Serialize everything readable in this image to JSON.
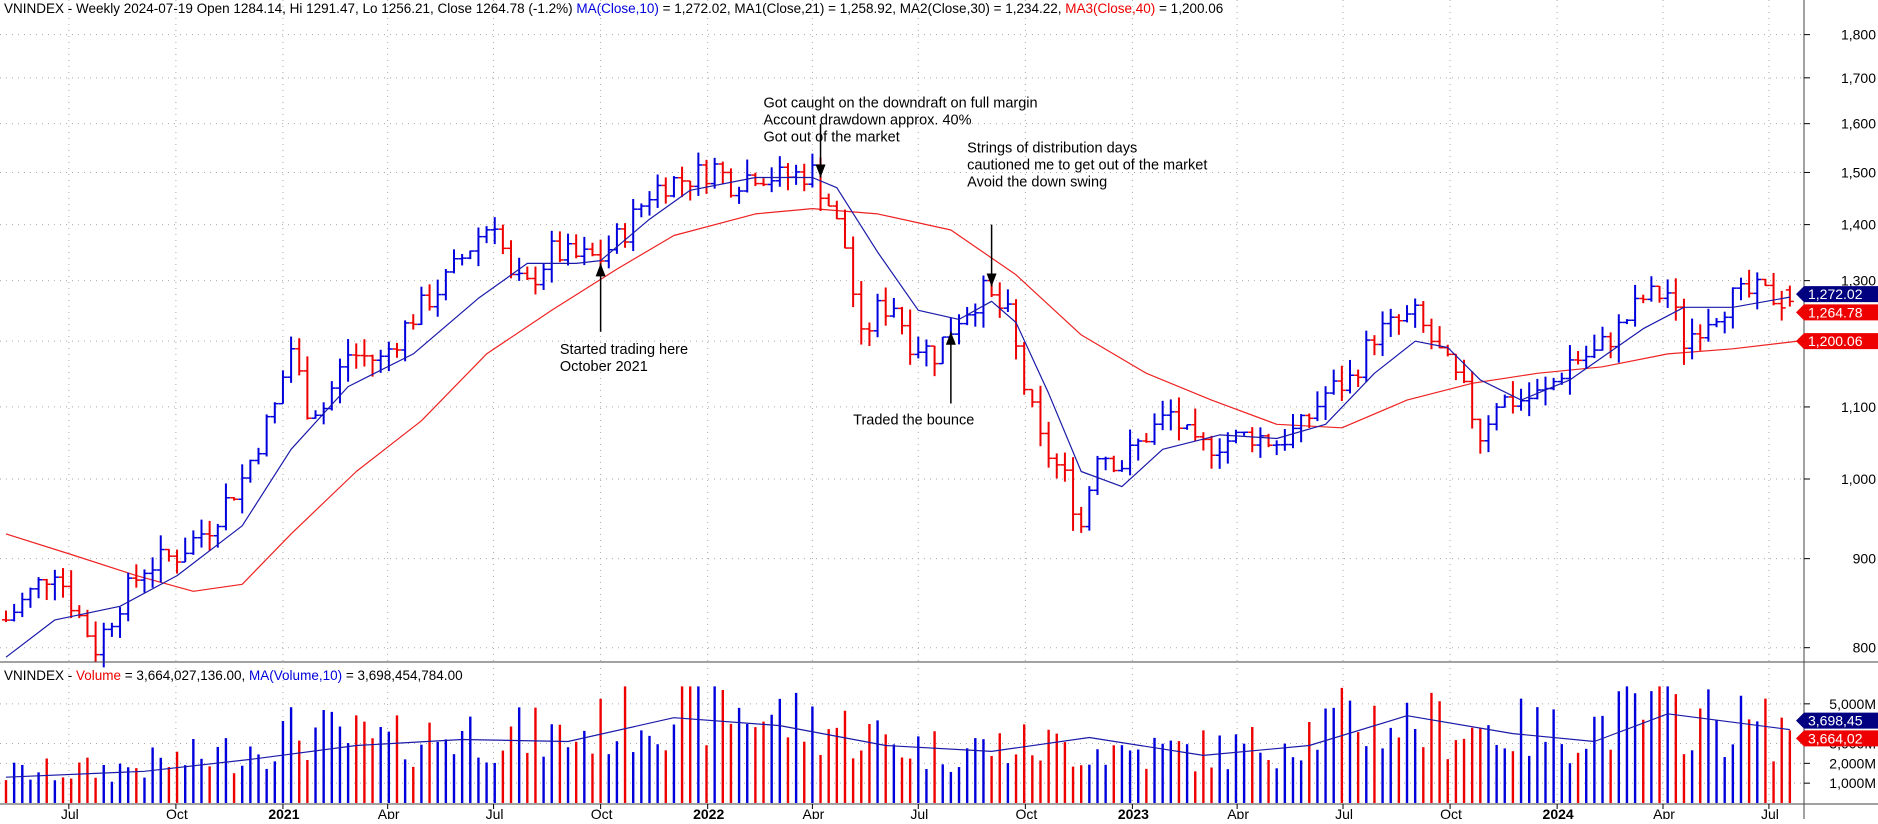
{
  "colors": {
    "up": "#0000dd",
    "down": "#ee0000",
    "ma_short": "#1a1aaa",
    "ma_long": "#ee2222",
    "grid": "#aaaaaa",
    "text": "#000000",
    "tag_blue": "#000080",
    "tag_red": "#ee0000"
  },
  "price_header": [
    {
      "text": "VNINDEX - Weekly 2024-07-19 Open 1284.14, Hi 1291.47, Lo 1256.21, Close 1264.78 (-1.2%) ",
      "color": "#000000"
    },
    {
      "text": "MA(Close,10)",
      "color": "#0000dd"
    },
    {
      "text": " = 1,272.02, MA1(Close,21) = 1,258.92, MA2(Close,30) = 1,234.22, ",
      "color": "#000000"
    },
    {
      "text": "MA3(Close,40)",
      "color": "#ee0000"
    },
    {
      "text": " = 1,200.06",
      "color": "#000000"
    }
  ],
  "volume_header": [
    {
      "text": "VNINDEX - ",
      "color": "#000000"
    },
    {
      "text": "Volume",
      "color": "#ee0000"
    },
    {
      "text": " = 3,664,027,136.00, ",
      "color": "#000000"
    },
    {
      "text": "MA(Volume,10)",
      "color": "#0000dd"
    },
    {
      "text": " = 3,698,454,784.00",
      "color": "#000000"
    }
  ],
  "annotations": [
    {
      "lines": [
        "Got caught on the downdraft on full margin",
        "Account drawdown approx. 40%",
        "Got out of the market"
      ],
      "arrow_date": "2022-04-08",
      "arrow_dir": "down",
      "arrow_from": 1600,
      "arrow_to": 1490,
      "text_date": "2022-02-18",
      "text_price": 1635
    },
    {
      "lines": [
        "Strings of distribution days",
        "cautioned me to get out of the market",
        "Avoid the down swing"
      ],
      "arrow_date": "2022-09-02",
      "arrow_dir": "down",
      "arrow_from": 1400,
      "arrow_to": 1290,
      "text_date": "2022-08-12",
      "text_price": 1540
    },
    {
      "lines": [
        "Started trading here",
        "October 2021"
      ],
      "arrow_date": "2021-10-01",
      "arrow_dir": "up",
      "arrow_from": 1215,
      "arrow_to": 1330,
      "text_date": "2021-08-27",
      "text_price": 1180
    },
    {
      "lines": [
        "Traded the bounce"
      ],
      "arrow_date": "2022-07-29",
      "arrow_dir": "up",
      "arrow_from": 1105,
      "arrow_to": 1215,
      "text_date": "2022-05-06",
      "text_price": 1075
    }
  ],
  "chart_data": [
    {
      "type": "ohlc",
      "title": "VNINDEX - Weekly",
      "scale": "log",
      "ylim": [
        785,
        1840
      ],
      "xlim": [
        "2020-05-08",
        "2024-07-26"
      ],
      "y_ticks": [
        {
          "value": 800,
          "label": "800"
        },
        {
          "value": 900,
          "label": "900"
        },
        {
          "value": 1000,
          "label": "1,000"
        },
        {
          "value": 1100,
          "label": "1,100"
        },
        {
          "value": 1200,
          "label": "1,200"
        },
        {
          "value": 1300,
          "label": "1,300"
        },
        {
          "value": 1400,
          "label": "1,400"
        },
        {
          "value": 1500,
          "label": "1,500"
        },
        {
          "value": 1600,
          "label": "1,600"
        },
        {
          "value": 1700,
          "label": "1,700"
        },
        {
          "value": 1800,
          "label": "1,800"
        }
      ],
      "x_ticks": [
        {
          "date": "2020-07-01",
          "label": "Jul",
          "bold": false
        },
        {
          "date": "2020-10-01",
          "label": "Oct",
          "bold": false
        },
        {
          "date": "2021-01-01",
          "label": "2021",
          "bold": true
        },
        {
          "date": "2021-04-01",
          "label": "Apr",
          "bold": false
        },
        {
          "date": "2021-07-01",
          "label": "Jul",
          "bold": false
        },
        {
          "date": "2021-10-01",
          "label": "Oct",
          "bold": false
        },
        {
          "date": "2022-01-01",
          "label": "2022",
          "bold": true
        },
        {
          "date": "2022-04-01",
          "label": "Apr",
          "bold": false
        },
        {
          "date": "2022-07-01",
          "label": "Jul",
          "bold": false
        },
        {
          "date": "2022-10-01",
          "label": "Oct",
          "bold": false
        },
        {
          "date": "2023-01-01",
          "label": "2023",
          "bold": true
        },
        {
          "date": "2023-04-01",
          "label": "Apr",
          "bold": false
        },
        {
          "date": "2023-07-01",
          "label": "Jul",
          "bold": false
        },
        {
          "date": "2023-10-01",
          "label": "Oct",
          "bold": false
        },
        {
          "date": "2024-01-01",
          "label": "2024",
          "bold": true
        },
        {
          "date": "2024-04-01",
          "label": "Apr",
          "bold": false
        },
        {
          "date": "2024-07-01",
          "label": "Jul",
          "bold": false
        }
      ],
      "last_bar": {
        "date": "2024-07-19",
        "open": 1284.14,
        "high": 1291.47,
        "low": 1256.21,
        "close": 1264.78
      },
      "price_path": [
        [
          "2020-05-08",
          830
        ],
        [
          "2020-05-29",
          860
        ],
        [
          "2020-06-19",
          890
        ],
        [
          "2020-07-03",
          850
        ],
        [
          "2020-07-24",
          800
        ],
        [
          "2020-08-14",
          850
        ],
        [
          "2020-09-04",
          890
        ],
        [
          "2020-10-02",
          905
        ],
        [
          "2020-10-30",
          940
        ],
        [
          "2020-11-27",
          1000
        ],
        [
          "2020-12-25",
          1100
        ],
        [
          "2021-01-08",
          1190
        ],
        [
          "2021-01-22",
          1100
        ],
        [
          "2021-02-05",
          1100
        ],
        [
          "2021-02-26",
          1180
        ],
        [
          "2021-03-26",
          1170
        ],
        [
          "2021-04-23",
          1240
        ],
        [
          "2021-05-21",
          1300
        ],
        [
          "2021-06-18",
          1380
        ],
        [
          "2021-07-02",
          1410
        ],
        [
          "2021-07-16",
          1300
        ],
        [
          "2021-07-30",
          1290
        ],
        [
          "2021-08-20",
          1350
        ],
        [
          "2021-09-10",
          1340
        ],
        [
          "2021-10-01",
          1340
        ],
        [
          "2021-10-22",
          1390
        ],
        [
          "2021-11-12",
          1460
        ],
        [
          "2021-11-26",
          1480
        ],
        [
          "2021-12-17",
          1490
        ],
        [
          "2022-01-07",
          1510
        ],
        [
          "2022-01-21",
          1480
        ],
        [
          "2022-02-11",
          1500
        ],
        [
          "2022-03-04",
          1490
        ],
        [
          "2022-04-01",
          1500
        ],
        [
          "2022-04-15",
          1440
        ],
        [
          "2022-04-29",
          1360
        ],
        [
          "2022-05-13",
          1200
        ],
        [
          "2022-05-27",
          1250
        ],
        [
          "2022-06-10",
          1260
        ],
        [
          "2022-06-24",
          1200
        ],
        [
          "2022-07-15",
          1180
        ],
        [
          "2022-08-05",
          1240
        ],
        [
          "2022-08-26",
          1280
        ],
        [
          "2022-09-16",
          1240
        ],
        [
          "2022-09-30",
          1130
        ],
        [
          "2022-10-14",
          1050
        ],
        [
          "2022-11-04",
          1000
        ],
        [
          "2022-11-18",
          940
        ],
        [
          "2022-12-02",
          1040
        ],
        [
          "2022-12-23",
          1020
        ],
        [
          "2023-01-13",
          1060
        ],
        [
          "2023-02-03",
          1090
        ],
        [
          "2023-02-24",
          1040
        ],
        [
          "2023-03-17",
          1050
        ],
        [
          "2023-04-14",
          1060
        ],
        [
          "2023-05-05",
          1050
        ],
        [
          "2023-05-26",
          1070
        ],
        [
          "2023-06-16",
          1120
        ],
        [
          "2023-07-07",
          1140
        ],
        [
          "2023-07-28",
          1210
        ],
        [
          "2023-08-18",
          1230
        ],
        [
          "2023-09-01",
          1240
        ],
        [
          "2023-09-22",
          1180
        ],
        [
          "2023-10-13",
          1120
        ],
        [
          "2023-10-27",
          1060
        ],
        [
          "2023-11-10",
          1110
        ],
        [
          "2023-12-01",
          1110
        ],
        [
          "2023-12-22",
          1120
        ],
        [
          "2024-01-12",
          1170
        ],
        [
          "2024-02-02",
          1180
        ],
        [
          "2024-02-23",
          1220
        ],
        [
          "2024-03-15",
          1270
        ],
        [
          "2024-04-05",
          1280
        ],
        [
          "2024-04-19",
          1200
        ],
        [
          "2024-05-10",
          1240
        ],
        [
          "2024-05-31",
          1270
        ],
        [
          "2024-06-21",
          1280
        ],
        [
          "2024-07-19",
          1264.78
        ]
      ],
      "ma_short_path": [
        [
          "2020-05-08",
          790
        ],
        [
          "2020-06-19",
          830
        ],
        [
          "2020-08-14",
          845
        ],
        [
          "2020-10-02",
          880
        ],
        [
          "2020-11-27",
          940
        ],
        [
          "2021-01-08",
          1040
        ],
        [
          "2021-02-26",
          1130
        ],
        [
          "2021-04-23",
          1180
        ],
        [
          "2021-06-18",
          1270
        ],
        [
          "2021-07-30",
          1330
        ],
        [
          "2021-09-10",
          1330
        ],
        [
          "2021-10-01",
          1335
        ],
        [
          "2021-11-12",
          1410
        ],
        [
          "2021-12-17",
          1465
        ],
        [
          "2022-02-11",
          1490
        ],
        [
          "2022-04-01",
          1490
        ],
        [
          "2022-04-22",
          1470
        ],
        [
          "2022-05-27",
          1350
        ],
        [
          "2022-07-01",
          1250
        ],
        [
          "2022-08-05",
          1235
        ],
        [
          "2022-09-02",
          1265
        ],
        [
          "2022-09-23",
          1230
        ],
        [
          "2022-10-21",
          1120
        ],
        [
          "2022-11-18",
          1010
        ],
        [
          "2022-12-23",
          990
        ],
        [
          "2023-01-27",
          1040
        ],
        [
          "2023-03-17",
          1060
        ],
        [
          "2023-05-05",
          1055
        ],
        [
          "2023-06-16",
          1075
        ],
        [
          "2023-07-28",
          1150
        ],
        [
          "2023-09-01",
          1200
        ],
        [
          "2023-09-29",
          1190
        ],
        [
          "2023-10-27",
          1140
        ],
        [
          "2023-12-01",
          1110
        ],
        [
          "2024-01-12",
          1140
        ],
        [
          "2024-03-15",
          1220
        ],
        [
          "2024-04-19",
          1255
        ],
        [
          "2024-05-31",
          1255
        ],
        [
          "2024-07-19",
          1272.02
        ]
      ],
      "ma_long_path": [
        [
          "2020-05-08",
          930
        ],
        [
          "2020-07-03",
          905
        ],
        [
          "2020-08-28",
          880
        ],
        [
          "2020-10-16",
          862
        ],
        [
          "2020-11-27",
          870
        ],
        [
          "2021-01-08",
          930
        ],
        [
          "2021-03-05",
          1010
        ],
        [
          "2021-04-30",
          1080
        ],
        [
          "2021-06-25",
          1180
        ],
        [
          "2021-08-20",
          1250
        ],
        [
          "2021-10-15",
          1320
        ],
        [
          "2021-12-03",
          1380
        ],
        [
          "2022-02-11",
          1420
        ],
        [
          "2022-04-01",
          1430
        ],
        [
          "2022-05-27",
          1420
        ],
        [
          "2022-07-29",
          1390
        ],
        [
          "2022-09-23",
          1310
        ],
        [
          "2022-11-18",
          1210
        ],
        [
          "2023-01-13",
          1150
        ],
        [
          "2023-03-10",
          1110
        ],
        [
          "2023-05-05",
          1075
        ],
        [
          "2023-06-30",
          1070
        ],
        [
          "2023-08-25",
          1110
        ],
        [
          "2023-10-20",
          1135
        ],
        [
          "2023-12-15",
          1150
        ],
        [
          "2024-02-09",
          1160
        ],
        [
          "2024-04-05",
          1180
        ],
        [
          "2024-05-31",
          1188
        ],
        [
          "2024-07-26",
          1200.06
        ]
      ],
      "value_tags": [
        {
          "value": 1272.02,
          "label": "1,272.02",
          "color": "#000080"
        },
        {
          "value": 1264.78,
          "label": "1,264.78",
          "color": "#ee0000"
        },
        {
          "value": 1200.06,
          "label": "1,200.06",
          "color": "#ee0000"
        }
      ]
    },
    {
      "type": "bar",
      "title": "VNINDEX - Volume",
      "ylim": [
        0,
        6000000000
      ],
      "y_ticks": [
        {
          "value": 1000000000,
          "label": "1,000M"
        },
        {
          "value": 2000000000,
          "label": "2,000M"
        },
        {
          "value": 3000000000,
          "label": "3,000M"
        },
        {
          "value": 5000000000,
          "label": "5,000M"
        }
      ],
      "last_volume": 3664027136,
      "last_ma": 3698454784,
      "volume_path": [
        [
          "2020-05-08",
          1500000000
        ],
        [
          "2020-08-07",
          1700000000
        ],
        [
          "2020-11-06",
          2400000000
        ],
        [
          "2021-01-15",
          3600000000
        ],
        [
          "2021-04-02",
          3000000000
        ],
        [
          "2021-06-04",
          3600000000
        ],
        [
          "2021-09-03",
          3300000000
        ],
        [
          "2021-11-26",
          4800000000
        ],
        [
          "2022-01-14",
          4800000000
        ],
        [
          "2022-04-15",
          3900000000
        ],
        [
          "2022-07-08",
          2700000000
        ],
        [
          "2022-10-14",
          2900000000
        ],
        [
          "2023-01-13",
          2600000000
        ],
        [
          "2023-04-07",
          2700000000
        ],
        [
          "2023-07-07",
          4200000000
        ],
        [
          "2023-10-06",
          3900000000
        ],
        [
          "2024-01-05",
          3500000000
        ],
        [
          "2024-03-22",
          4600000000
        ],
        [
          "2024-07-19",
          3600000000
        ]
      ],
      "volume_ma_path": [
        [
          "2020-05-08",
          1300000000
        ],
        [
          "2020-09-04",
          1600000000
        ],
        [
          "2020-12-04",
          2200000000
        ],
        [
          "2021-03-05",
          2900000000
        ],
        [
          "2021-06-04",
          3200000000
        ],
        [
          "2021-09-03",
          3100000000
        ],
        [
          "2021-12-03",
          4300000000
        ],
        [
          "2022-03-04",
          3900000000
        ],
        [
          "2022-06-03",
          2900000000
        ],
        [
          "2022-09-02",
          2600000000
        ],
        [
          "2022-11-25",
          3300000000
        ],
        [
          "2023-03-03",
          2400000000
        ],
        [
          "2023-06-02",
          2900000000
        ],
        [
          "2023-08-25",
          4400000000
        ],
        [
          "2023-11-24",
          3500000000
        ],
        [
          "2024-02-02",
          3100000000
        ],
        [
          "2024-04-05",
          4500000000
        ],
        [
          "2024-07-19",
          3698454784
        ]
      ],
      "value_tags": [
        {
          "value": 3698454784,
          "label": "3,698,45",
          "color": "#000080"
        },
        {
          "value": 3664027136,
          "label": "3,664,02",
          "color": "#ee0000"
        }
      ]
    }
  ]
}
